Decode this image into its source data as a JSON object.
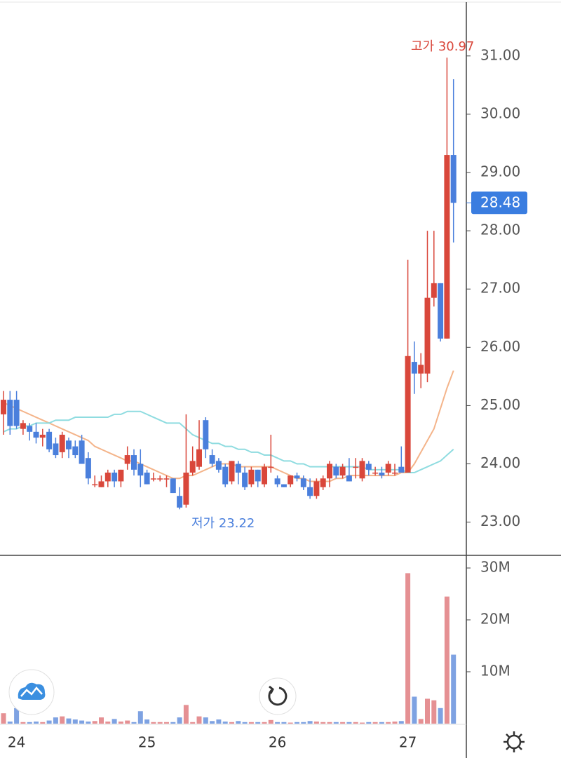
{
  "chart_data": {
    "type": "candlestick",
    "categories": [
      null,
      null,
      "24",
      null,
      null,
      null,
      null,
      null,
      null,
      null,
      null,
      null,
      null,
      null,
      null,
      null,
      null,
      null,
      null,
      null,
      null,
      null,
      "25",
      null,
      null,
      null,
      null,
      null,
      null,
      null,
      null,
      null,
      null,
      null,
      null,
      null,
      null,
      null,
      null,
      null,
      null,
      null,
      "26",
      null,
      null,
      null,
      null,
      null,
      null,
      null,
      null,
      null,
      null,
      null,
      null,
      null,
      null,
      null,
      null,
      null,
      null,
      null,
      "27",
      null,
      null,
      null,
      null,
      null,
      null,
      null
    ],
    "open": [
      24.85,
      25.1,
      25.1,
      24.6,
      24.65,
      24.55,
      24.45,
      24.55,
      24.35,
      24.2,
      24.4,
      24.3,
      24.4,
      24.1,
      23.65,
      23.6,
      23.7,
      23.85,
      23.7,
      24.0,
      24.15,
      24.0,
      23.85,
      23.75,
      23.75,
      23.75,
      23.75,
      23.45,
      23.3,
      23.85,
      23.95,
      24.75,
      24.15,
      24.05,
      23.95,
      23.7,
      24.0,
      23.85,
      23.65,
      23.9,
      23.65,
      23.95,
      23.75,
      23.65,
      23.65,
      23.8,
      23.75,
      23.6,
      23.45,
      23.6,
      23.75,
      23.95,
      23.8,
      23.8,
      23.95,
      23.75,
      24.0,
      23.85,
      23.85,
      23.85,
      23.85,
      23.95,
      23.85,
      25.75,
      25.55,
      25.55,
      26.85,
      27.1,
      26.15,
      29.3
    ],
    "high": [
      25.25,
      25.25,
      25.25,
      24.75,
      24.7,
      24.7,
      24.6,
      24.6,
      24.45,
      24.55,
      24.45,
      24.4,
      24.5,
      24.2,
      23.8,
      23.8,
      23.9,
      23.9,
      23.9,
      24.3,
      24.25,
      24.25,
      23.9,
      23.85,
      23.8,
      23.8,
      23.75,
      23.6,
      24.85,
      24.3,
      24.75,
      24.8,
      24.25,
      24.1,
      24.0,
      24.05,
      24.05,
      23.95,
      23.95,
      23.9,
      24.0,
      24.5,
      23.8,
      23.65,
      23.8,
      23.85,
      23.8,
      23.75,
      23.75,
      23.8,
      24.05,
      24.0,
      24.0,
      24.1,
      24.1,
      24.1,
      24.05,
      23.95,
      23.95,
      24.05,
      24.0,
      24.3,
      27.5,
      26.1,
      25.9,
      28.0,
      28.0,
      27.1,
      30.97,
      30.6
    ],
    "low": [
      24.5,
      24.5,
      24.6,
      24.5,
      24.4,
      24.35,
      24.3,
      24.2,
      24.1,
      24.1,
      24.1,
      24.1,
      24.0,
      23.65,
      23.6,
      23.6,
      23.6,
      23.6,
      23.6,
      23.9,
      23.8,
      23.6,
      23.65,
      23.7,
      23.7,
      23.6,
      23.5,
      23.22,
      23.25,
      23.8,
      23.9,
      24.1,
      23.95,
      23.85,
      23.6,
      23.65,
      23.65,
      23.55,
      23.6,
      23.6,
      23.6,
      23.85,
      23.6,
      23.6,
      23.6,
      23.7,
      23.55,
      23.4,
      23.4,
      23.55,
      23.6,
      23.75,
      23.75,
      23.7,
      23.75,
      23.7,
      23.8,
      23.8,
      23.75,
      23.8,
      23.8,
      23.85,
      23.85,
      25.2,
      25.3,
      25.4,
      26.7,
      26.1,
      26.15,
      27.8
    ],
    "close": [
      25.1,
      24.65,
      24.65,
      24.7,
      24.55,
      24.45,
      24.5,
      24.25,
      24.15,
      24.5,
      24.25,
      24.15,
      24.0,
      23.75,
      23.65,
      23.7,
      23.85,
      23.7,
      23.9,
      24.15,
      23.9,
      23.8,
      23.65,
      23.75,
      23.75,
      23.75,
      23.5,
      23.25,
      23.85,
      24.05,
      24.25,
      24.25,
      24.0,
      23.9,
      23.65,
      24.05,
      23.85,
      23.6,
      23.9,
      23.7,
      23.95,
      23.95,
      23.65,
      23.6,
      23.8,
      23.75,
      23.6,
      23.45,
      23.7,
      23.75,
      24.0,
      23.8,
      23.95,
      23.7,
      23.95,
      24.05,
      23.9,
      23.85,
      23.8,
      24.0,
      23.85,
      23.85,
      25.85,
      25.55,
      25.7,
      26.85,
      27.1,
      26.15,
      29.3,
      28.48
    ],
    "up_color": "#d9473b",
    "down_color": "#4a7fdc",
    "ylim": [
      22.43,
      31.96
    ],
    "yticks": [
      {
        "value": 23,
        "label": "23.00"
      },
      {
        "value": 24,
        "label": "24.00"
      },
      {
        "value": 25,
        "label": "25.00"
      },
      {
        "value": 26,
        "label": "26.00"
      },
      {
        "value": 27,
        "label": "27.00"
      },
      {
        "value": 28,
        "label": "28.00"
      },
      {
        "value": 29,
        "label": "29.00"
      },
      {
        "value": 30,
        "label": "30.00"
      },
      {
        "value": 31,
        "label": "31.00"
      }
    ],
    "overlays": [
      {
        "color": "#f4b48a",
        "values": [
          25.05,
          25.0,
          24.95,
          24.9,
          24.85,
          24.8,
          24.75,
          24.7,
          24.65,
          24.6,
          24.55,
          24.5,
          24.45,
          24.4,
          24.3,
          24.25,
          24.2,
          24.15,
          24.1,
          24.05,
          24.05,
          24.0,
          23.95,
          23.9,
          23.85,
          23.8,
          23.75,
          23.75,
          23.8,
          23.8,
          23.85,
          23.9,
          23.95,
          24.0,
          24.0,
          24.0,
          23.95,
          23.95,
          23.95,
          23.95,
          23.95,
          23.95,
          23.9,
          23.85,
          23.8,
          23.75,
          23.75,
          23.7,
          23.7,
          23.7,
          23.7,
          23.75,
          23.75,
          23.8,
          23.8,
          23.8,
          23.8,
          23.8,
          23.8,
          23.8,
          23.8,
          23.85,
          23.85,
          24.0,
          24.2,
          24.4,
          24.6,
          24.95,
          25.3,
          25.6
        ]
      },
      {
        "color": "#8fdce0",
        "values": [
          24.55,
          24.6,
          24.6,
          24.65,
          24.65,
          24.7,
          24.7,
          24.7,
          24.75,
          24.75,
          24.75,
          24.8,
          24.8,
          24.8,
          24.8,
          24.8,
          24.8,
          24.85,
          24.85,
          24.9,
          24.9,
          24.9,
          24.85,
          24.8,
          24.75,
          24.7,
          24.7,
          24.7,
          24.6,
          24.5,
          24.45,
          24.4,
          24.35,
          24.35,
          24.3,
          24.3,
          24.25,
          24.25,
          24.2,
          24.2,
          24.15,
          24.15,
          24.1,
          24.05,
          24.05,
          24.0,
          24.0,
          23.95,
          23.95,
          23.95,
          23.95,
          23.95,
          23.95,
          23.95,
          23.95,
          23.95,
          23.9,
          23.9,
          23.9,
          23.9,
          23.9,
          23.9,
          23.85,
          23.85,
          23.9,
          23.95,
          24.0,
          24.05,
          24.15,
          24.25
        ]
      }
    ],
    "annotations": [
      {
        "text": "고가 30.97",
        "color": "#d9473b"
      },
      {
        "text": "저가 23.22",
        "color": "#4a7fdc"
      }
    ],
    "last_price": 28.48,
    "volume": {
      "values": [
        2.0,
        0.4,
        3.0,
        0.3,
        0.3,
        0.4,
        0.3,
        0.6,
        1.2,
        1.4,
        1.0,
        0.8,
        0.6,
        0.4,
        0.5,
        1.2,
        0.4,
        0.9,
        0.4,
        0.6,
        0.3,
        2.4,
        0.8,
        0.3,
        0.3,
        0.3,
        0.3,
        1.2,
        3.6,
        0.3,
        1.4,
        1.2,
        0.5,
        0.8,
        0.4,
        0.3,
        0.5,
        0.3,
        0.3,
        0.3,
        0.3,
        0.7,
        0.3,
        0.3,
        0.2,
        0.3,
        0.3,
        0.5,
        0.4,
        0.3,
        0.3,
        0.3,
        0.3,
        0.3,
        0.3,
        0.2,
        0.3,
        0.3,
        0.3,
        0.3,
        0.4,
        0.5,
        29.0,
        5.2,
        0.9,
        4.8,
        4.5,
        3.0,
        24.5,
        13.3
      ],
      "up_color": "#e59093",
      "down_color": "#7ea2e2",
      "ylim": [
        0,
        32.3
      ],
      "yticks": [
        {
          "value": 10,
          "label": "10M"
        },
        {
          "value": 20,
          "label": "20M"
        },
        {
          "value": 30,
          "label": "30M"
        }
      ]
    }
  }
}
